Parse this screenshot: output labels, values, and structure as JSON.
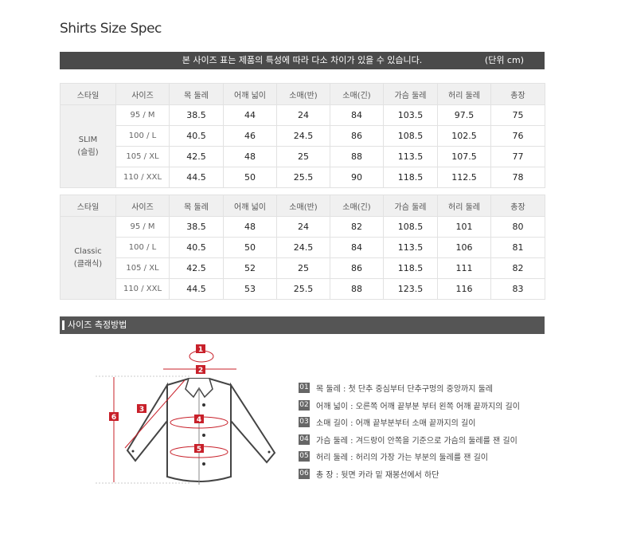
{
  "title": "Shirts Size Spec",
  "notice": {
    "message": "본 사이즈 표는 제품의 특성에 따라 다소 차이가 있을 수 있습니다.",
    "unit": "(단위 cm)"
  },
  "columns": [
    "스타일",
    "사이즈",
    "목 둘레",
    "어깨 넓이",
    "소매(반)",
    "소매(긴)",
    "가슴 둘레",
    "허리 둘레",
    "총장"
  ],
  "tables": [
    {
      "style": "SLIM",
      "style_ko": "(슬림)",
      "rows": [
        [
          "95 / M",
          "38.5",
          "44",
          "24",
          "84",
          "103.5",
          "97.5",
          "75"
        ],
        [
          "100 / L",
          "40.5",
          "46",
          "24.5",
          "86",
          "108.5",
          "102.5",
          "76"
        ],
        [
          "105 / XL",
          "42.5",
          "48",
          "25",
          "88",
          "113.5",
          "107.5",
          "77"
        ],
        [
          "110 / XXL",
          "44.5",
          "50",
          "25.5",
          "90",
          "118.5",
          "112.5",
          "78"
        ]
      ]
    },
    {
      "style": "Classic",
      "style_ko": "(클래식)",
      "rows": [
        [
          "95 / M",
          "38.5",
          "48",
          "24",
          "82",
          "108.5",
          "101",
          "80"
        ],
        [
          "100 / L",
          "40.5",
          "50",
          "24.5",
          "84",
          "113.5",
          "106",
          "81"
        ],
        [
          "105 / XL",
          "42.5",
          "52",
          "25",
          "86",
          "118.5",
          "111",
          "82"
        ],
        [
          "110 / XXL",
          "44.5",
          "53",
          "25.5",
          "88",
          "123.5",
          "116",
          "83"
        ]
      ]
    }
  ],
  "section_title": "사이즈 측정방법",
  "diagram_markers": [
    "1",
    "2",
    "3",
    "4",
    "5",
    "6"
  ],
  "accent": "#c8202a",
  "legend": [
    {
      "num": "01",
      "text": "목 둘레 : 첫 단추 중심부터 단추구멍의 중앙까지 둘레"
    },
    {
      "num": "02",
      "text": "어깨 넓이 : 오른쪽 어깨 끝부분 부터 왼쪽 어깨 끝까지의 길이"
    },
    {
      "num": "03",
      "text": "소매 길이 : 어깨 끝부분부터 소매 끝까지의 길이"
    },
    {
      "num": "04",
      "text": "가슴 둘레 : 겨드랑이 안쪽을 기준으로 가슴의 둘레를 잰 길이"
    },
    {
      "num": "05",
      "text": "허리 둘레 : 허리의 가장 가는 부분의 둘레를 잰 길이"
    },
    {
      "num": "06",
      "text": "총 장 : 뒷면 카라 밑 재봉선에서 하단"
    }
  ]
}
